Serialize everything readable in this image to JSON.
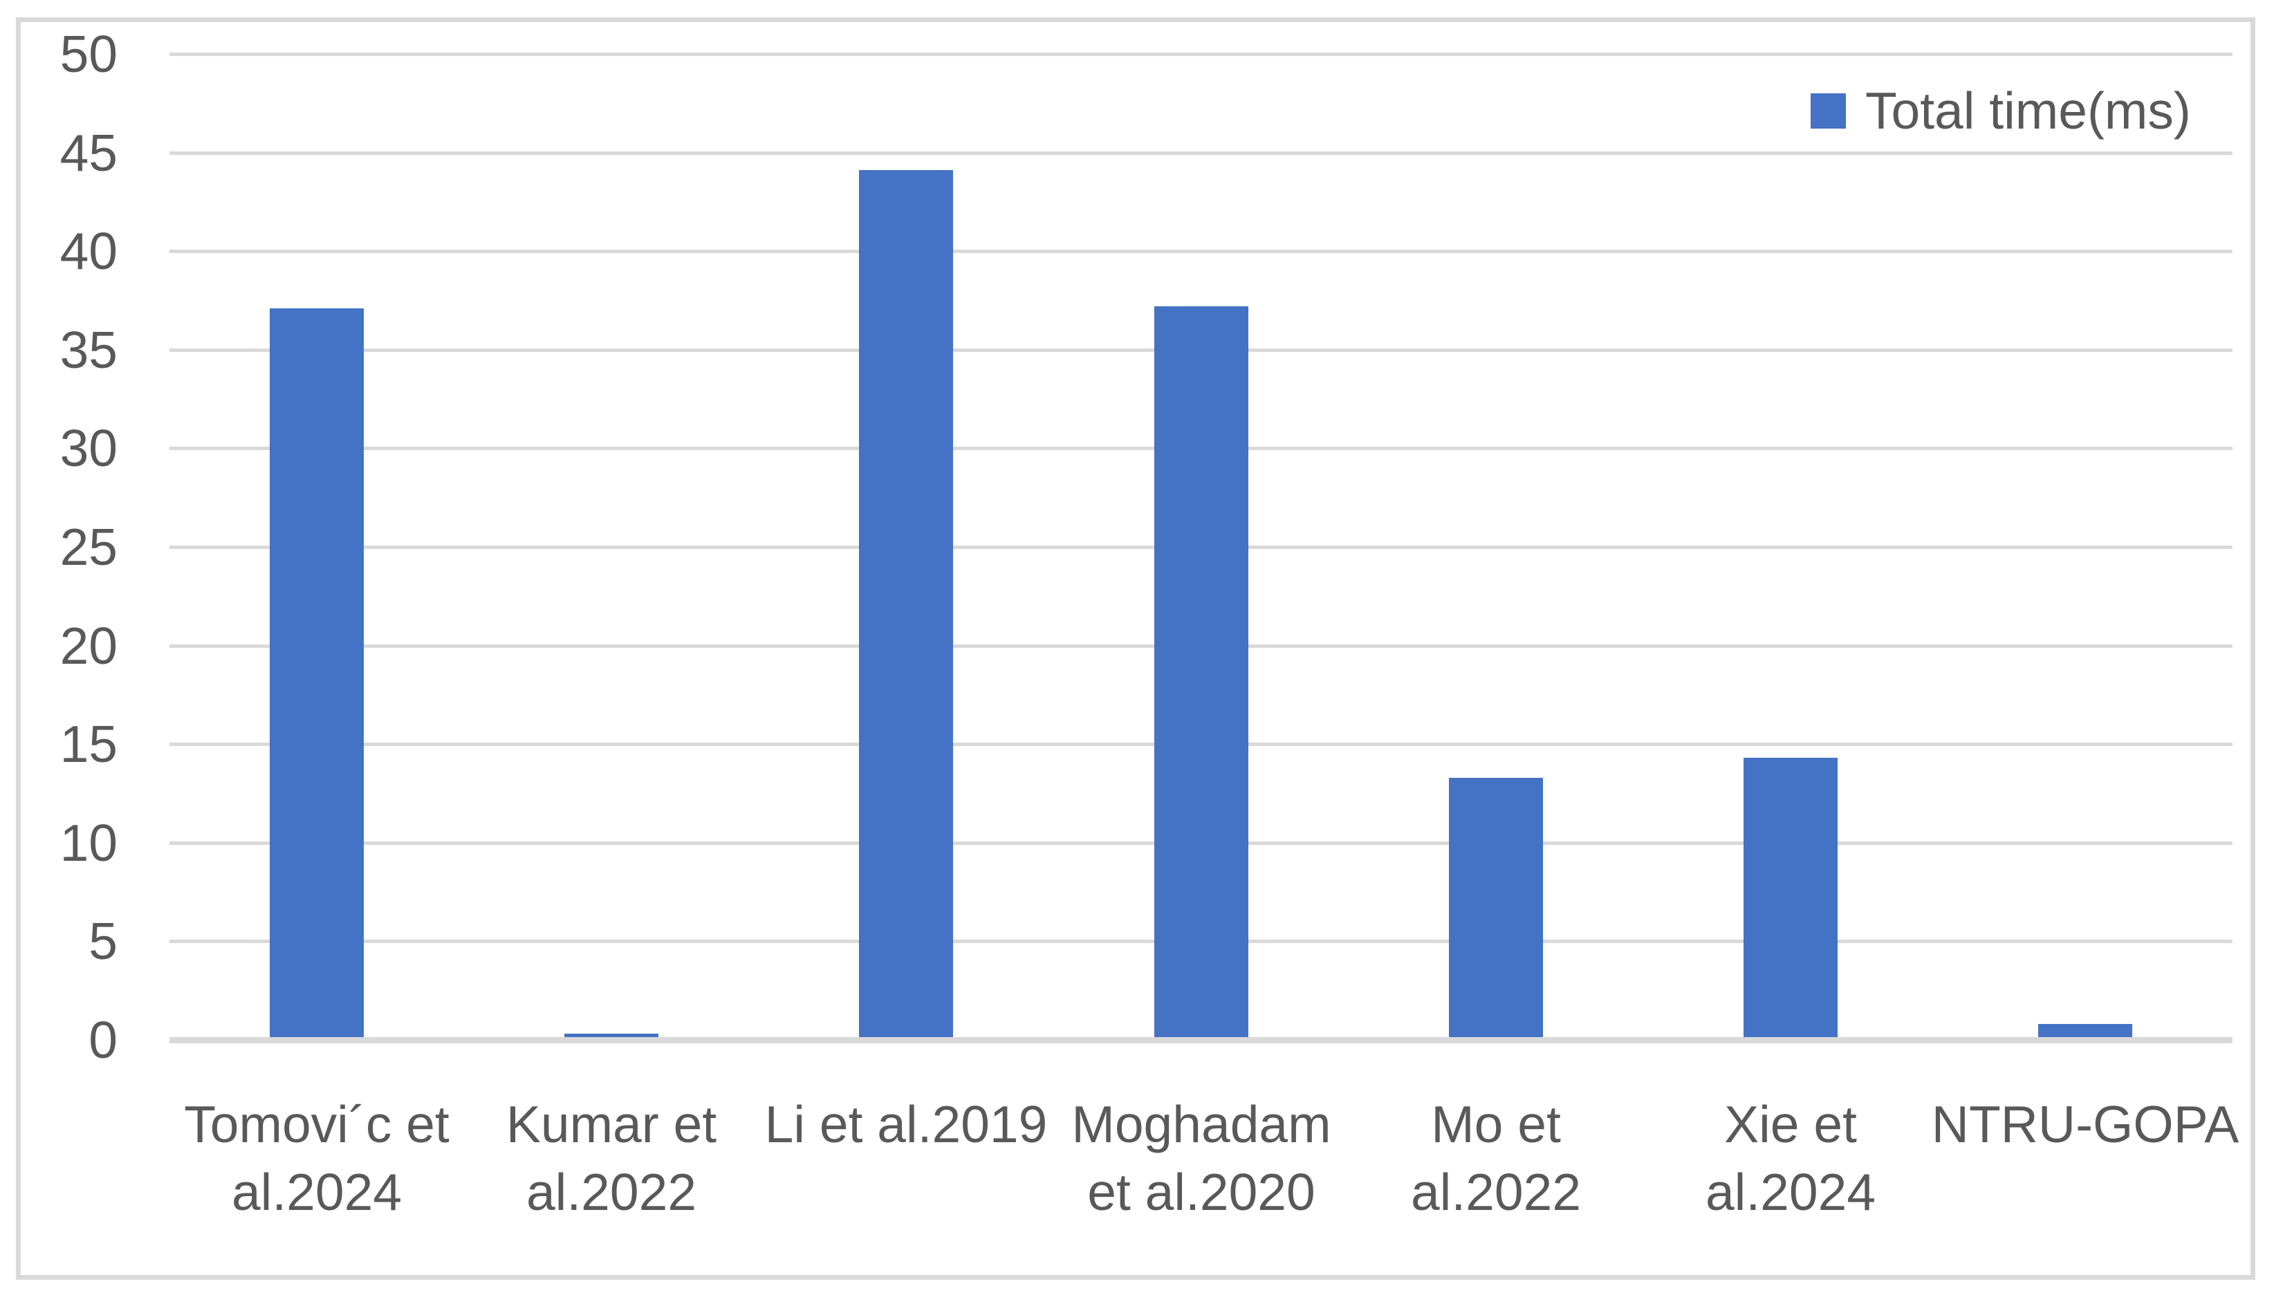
{
  "chart_data": {
    "type": "bar",
    "title": "",
    "series_name": "Total time(ms)",
    "categories": [
      "Tomovi´c et al.2024",
      "Kumar et al.2022",
      "Li et al.2019",
      "Moghadam et al.2020",
      "Mo et al.2022",
      "Xie et al.2024",
      "NTRU-GOPA"
    ],
    "categories_wrapped": [
      "Tomovi´c et\nal.2024",
      "Kumar et\nal.2022",
      "Li et al.2019",
      "Moghadam\net al.2020",
      "Mo et\nal.2022",
      "Xie et\nal.2024",
      "NTRU-GOPA"
    ],
    "values": [
      37.1,
      0.3,
      44.1,
      37.2,
      13.3,
      14.3,
      0.8
    ],
    "xlabel": "",
    "ylabel": "",
    "ylim": [
      0,
      50
    ],
    "ytick_step": 5,
    "yticks": [
      0,
      5,
      10,
      15,
      20,
      25,
      30,
      35,
      40,
      45,
      50
    ],
    "grid": true,
    "legend_position": "top-right",
    "colors": {
      "bar": "#4472C4",
      "gridline": "#d9d9d9",
      "axis_line": "#d9d9d9",
      "text": "#595959",
      "frame_border": "#d9d9d9",
      "background": "#ffffff"
    }
  }
}
